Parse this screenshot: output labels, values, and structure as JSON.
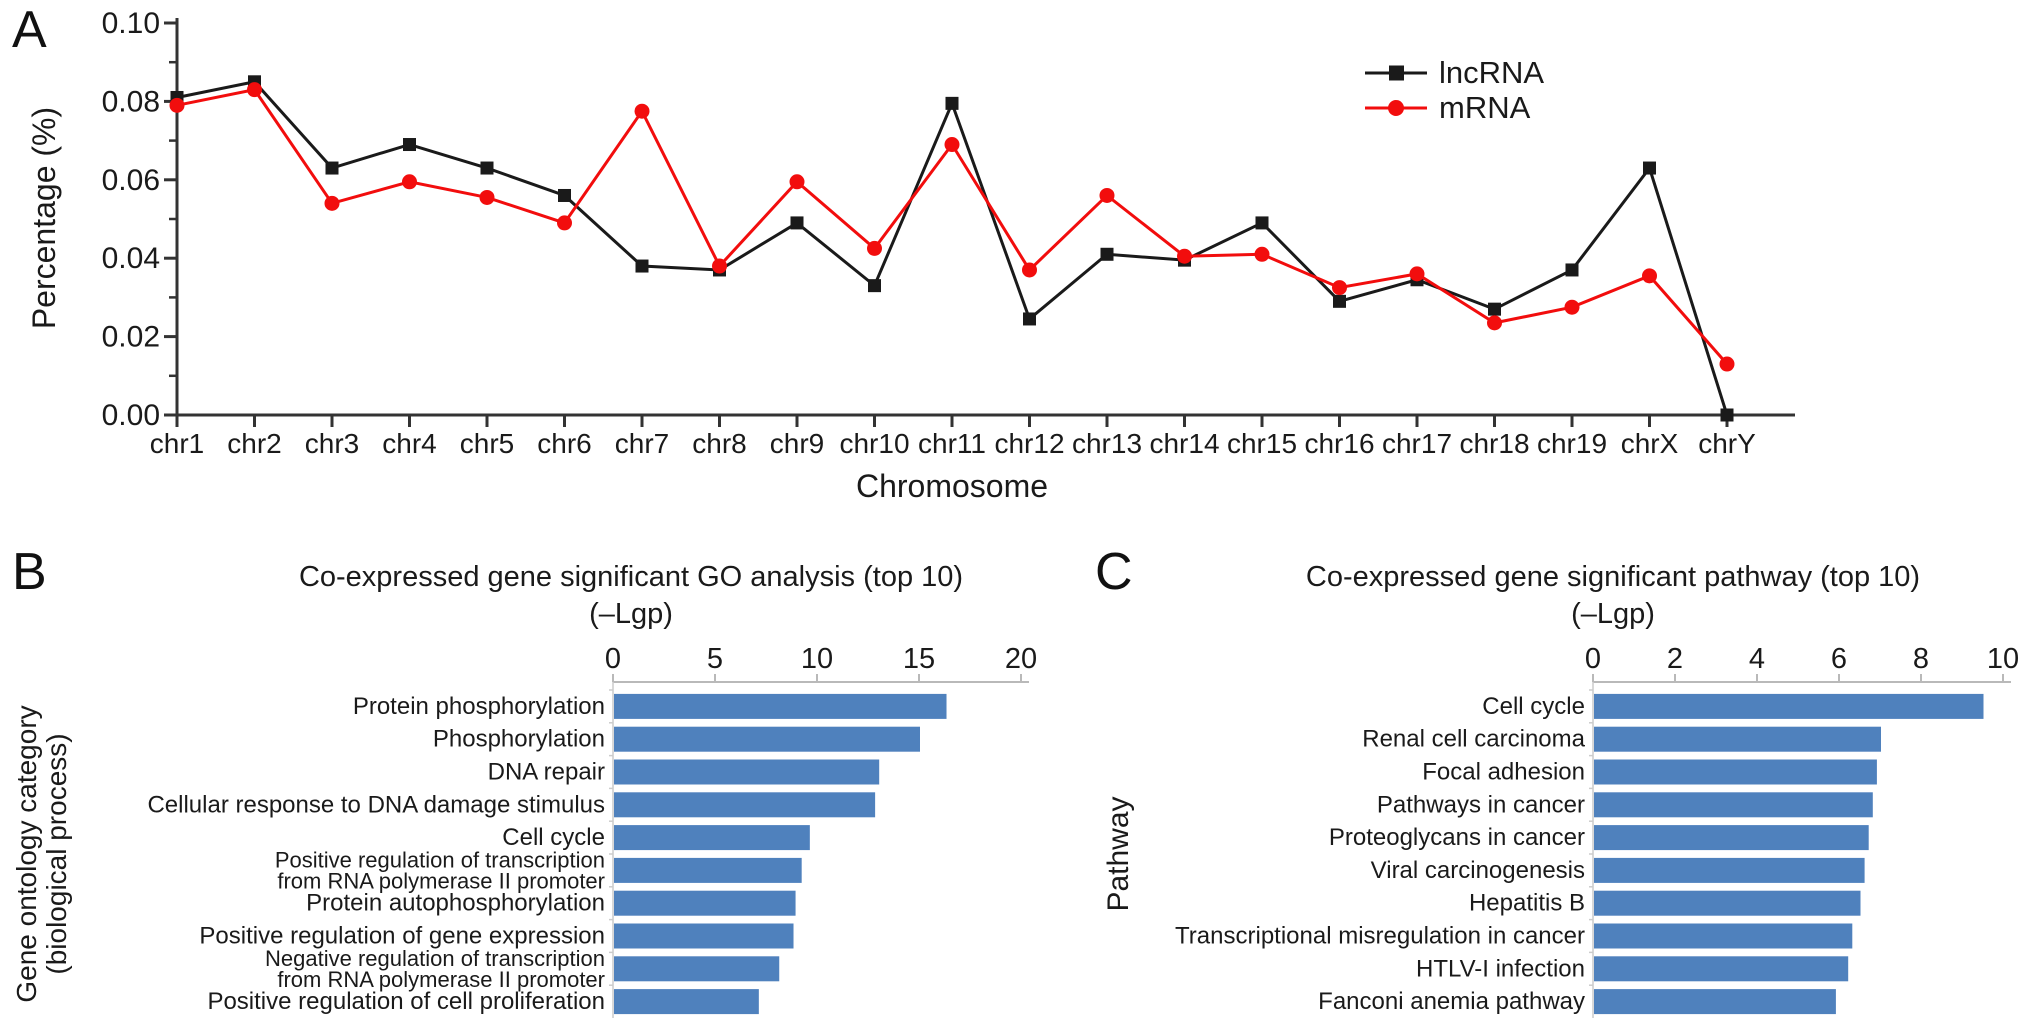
{
  "panels": {
    "a": {
      "label": "A"
    },
    "b": {
      "label": "B"
    },
    "c": {
      "label": "C"
    }
  },
  "chart_data": [
    {
      "id": "chromosome_distribution",
      "panel": "A",
      "type": "line",
      "title": "",
      "xlabel": "Chromosome",
      "ylabel": "Percentage (%)",
      "ylim": [
        0,
        0.1
      ],
      "yticks": [
        "0.00",
        "0.02",
        "0.04",
        "0.06",
        "0.08",
        "0.10"
      ],
      "grid": false,
      "legend_position": "top-right",
      "categories": [
        "chr1",
        "chr2",
        "chr3",
        "chr4",
        "chr5",
        "chr6",
        "chr7",
        "chr8",
        "chr9",
        "chr10",
        "chr11",
        "chr12",
        "chr13",
        "chr14",
        "chr15",
        "chr16",
        "chr17",
        "chr18",
        "chr19",
        "chrX",
        "chrY"
      ],
      "series": [
        {
          "name": "lncRNA",
          "color": "#1a1a1a",
          "marker": "square",
          "values": [
            0.081,
            0.085,
            0.063,
            0.069,
            0.063,
            0.056,
            0.038,
            0.037,
            0.049,
            0.033,
            0.0795,
            0.0245,
            0.041,
            0.0395,
            0.049,
            0.029,
            0.0345,
            0.027,
            0.037,
            0.063,
            0.0
          ]
        },
        {
          "name": "mRNA",
          "color": "#f20d0d",
          "marker": "circle",
          "values": [
            0.079,
            0.083,
            0.054,
            0.0595,
            0.0555,
            0.049,
            0.0775,
            0.038,
            0.0595,
            0.0425,
            0.069,
            0.037,
            0.056,
            0.0405,
            0.041,
            0.0325,
            0.036,
            0.0235,
            0.0275,
            0.0355,
            0.013
          ]
        }
      ]
    },
    {
      "id": "go_analysis",
      "panel": "B",
      "type": "bar",
      "orientation": "horizontal",
      "title": "Co-expressed gene significant GO analysis (top 10)",
      "axis_title": "(–Lgp)",
      "ylabel_lines": [
        "Gene ontology category",
        "(biological process)"
      ],
      "xlim": [
        0,
        20
      ],
      "xticks": [
        0,
        5,
        10,
        15,
        20
      ],
      "bar_color": "#4f81bd",
      "categories": [
        "Protein phosphorylation",
        "Phosphorylation",
        "DNA repair",
        "Cellular response to DNA damage stimulus",
        "Cell cycle",
        "Positive regulation of transcription\nfrom RNA polymerase II promoter",
        "Protein autophosphorylation",
        "Positive regulation of gene expression",
        "Negative regulation of transcription\nfrom RNA polymerase II promoter",
        "Positive regulation of cell proliferation"
      ],
      "values": [
        16.3,
        15.0,
        13.0,
        12.8,
        9.6,
        9.2,
        8.9,
        8.8,
        8.1,
        7.1
      ]
    },
    {
      "id": "pathway_analysis",
      "panel": "C",
      "type": "bar",
      "orientation": "horizontal",
      "title": "Co-expressed gene significant pathway (top 10)",
      "axis_title": "(–Lgp)",
      "ylabel_lines": [
        "Pathway"
      ],
      "xlim": [
        0,
        10
      ],
      "xticks": [
        0,
        2,
        4,
        6,
        8,
        10
      ],
      "bar_color": "#4f81bd",
      "categories": [
        "Cell cycle",
        "Renal cell carcinoma",
        "Focal adhesion",
        "Pathways in cancer",
        "Proteoglycans in cancer",
        "Viral carcinogenesis",
        "Hepatitis B",
        "Transcriptional misregulation in cancer",
        "HTLV-I infection",
        "Fanconi anemia pathway"
      ],
      "values": [
        9.5,
        7.0,
        6.9,
        6.8,
        6.7,
        6.6,
        6.5,
        6.3,
        6.2,
        5.9
      ]
    }
  ]
}
